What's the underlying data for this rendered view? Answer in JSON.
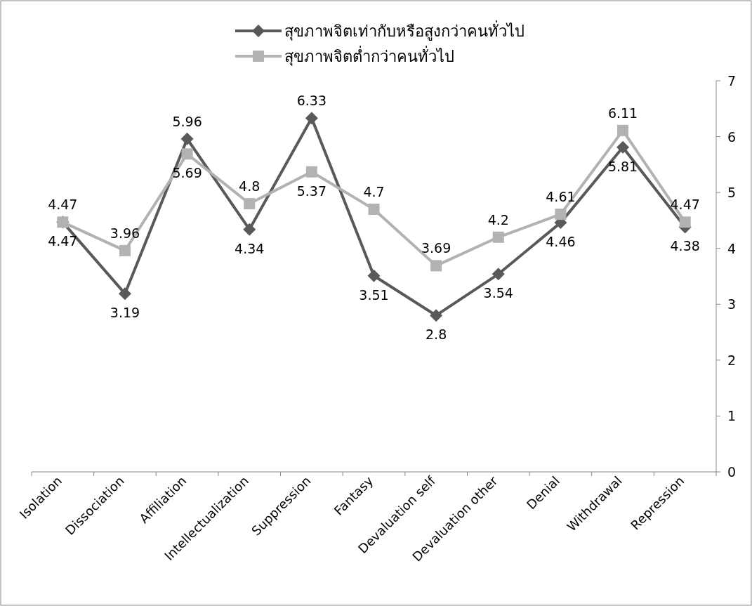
{
  "chart_data": {
    "type": "line",
    "categories": [
      "Isolation",
      "Dissociation",
      "Affiliation",
      "Intellectualization",
      "Suppression",
      "Fantasy",
      "Devaluation self",
      "Devaluation other",
      "Denial",
      "Withdrawal",
      "Repression"
    ],
    "series": [
      {
        "name": "สุขภาพจิตเท่ากับหรือสูงกว่าคนทั่วไป",
        "color": "#595959",
        "marker": "diamond",
        "values": [
          4.47,
          3.19,
          5.96,
          4.34,
          6.33,
          3.51,
          2.8,
          3.54,
          4.46,
          5.81,
          4.38
        ]
      },
      {
        "name": "สุขภาพจิตต่ำกว่าคนทั่วไป",
        "color": "#b2b2b2",
        "marker": "square",
        "values": [
          4.47,
          3.96,
          5.69,
          4.8,
          5.37,
          4.7,
          3.69,
          4.2,
          4.61,
          6.11,
          4.47
        ]
      }
    ],
    "ylim": [
      0,
      7
    ],
    "yticks": [
      0,
      1,
      2,
      3,
      4,
      5,
      6,
      7
    ],
    "grid": false,
    "legend": "top",
    "data_labels": true,
    "line_style": "solid"
  }
}
